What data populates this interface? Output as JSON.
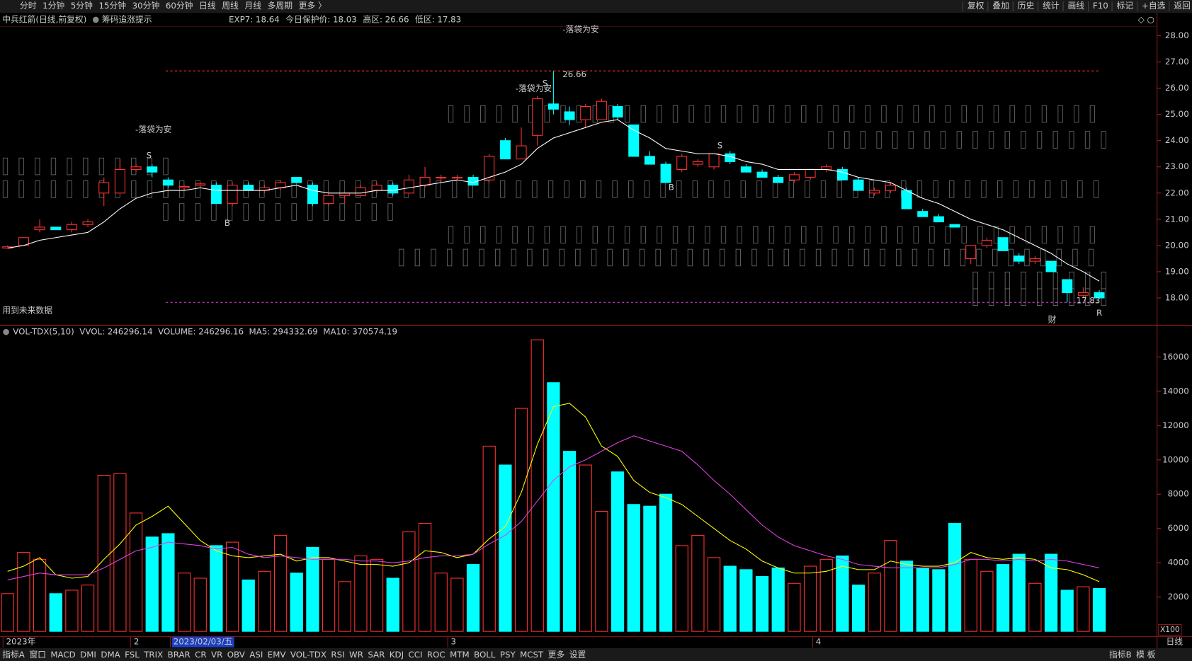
{
  "top_bar": {
    "left": [
      {
        "text": "分时"
      },
      {
        "text": "1分钟"
      },
      {
        "text": "5分钟"
      },
      {
        "text": "15分钟"
      },
      {
        "text": "30分钟"
      },
      {
        "text": "60分钟"
      },
      {
        "text": "日线",
        "active": true
      },
      {
        "text": "周线"
      },
      {
        "text": "月线"
      },
      {
        "text": "多周期"
      },
      {
        "text": "更多 〉"
      }
    ],
    "right": [
      "复权",
      "叠加",
      "历史",
      "统计",
      "画线",
      "F10",
      "标记",
      "+自选",
      "返回"
    ]
  },
  "header": {
    "title": "中兵红箭(日线,前复权)",
    "tip": "筹码追涨提示",
    "items": [
      {
        "text": "EXP7: 18.64",
        "color": "#e0e0e0"
      },
      {
        "text": "今日保护价: 18.03",
        "color": "#e040e0"
      },
      {
        "text": "高区: 26.66",
        "color": "#ff3030"
      },
      {
        "text": "低区: 17.83",
        "color": "#e040e0"
      }
    ]
  },
  "volume_header": {
    "items": [
      {
        "text": "VOL-TDX(5,10)",
        "color": "#e0e0e0"
      },
      {
        "text": "VVOL: 246296.14",
        "color": "#e0e0e0"
      },
      {
        "text": "VOLUME: 246296.16",
        "color": "#ffff00"
      },
      {
        "text": "MA5: 294332.69",
        "color": "#ffff00"
      },
      {
        "text": "MA10: 370574.19",
        "color": "#e040e0"
      }
    ]
  },
  "annotations": [
    {
      "text": "-落袋为安",
      "color": "#ffff00"
    },
    {
      "text": "-落袋为安",
      "color": "#ffff00"
    },
    {
      "text": "-落袋为安",
      "color": "#ffff00"
    },
    {
      "text": "S",
      "color": "#00e000"
    },
    {
      "text": "S",
      "color": "#00e000"
    },
    {
      "text": "S",
      "color": "#00e000"
    },
    {
      "text": "B",
      "color": "#ff3030"
    },
    {
      "text": "B",
      "color": "#ff3030"
    },
    {
      "text": "R",
      "color": "#ff3030"
    },
    {
      "text": "财",
      "color": "#9ab0ff"
    },
    {
      "text": "用到未来数据",
      "color": "#999999"
    }
  ],
  "x_axis": {
    "labels": [
      {
        "text": "2023年"
      },
      {
        "text": "2"
      },
      {
        "text": "2023/02/03/五",
        "selected": true
      },
      {
        "text": "3"
      },
      {
        "text": "4"
      }
    ]
  },
  "corner": {
    "unit": "X100",
    "period": "日线"
  },
  "bottom_tabs": {
    "left": [
      {
        "text": "指标A"
      },
      {
        "text": "窗口"
      },
      {
        "text": "MACD"
      },
      {
        "text": "DMI"
      },
      {
        "text": "DMA"
      },
      {
        "text": "FSL"
      },
      {
        "text": "TRIX"
      },
      {
        "text": "BRAR"
      },
      {
        "text": "CR"
      },
      {
        "text": "VR"
      },
      {
        "text": "OBV"
      },
      {
        "text": "ASI"
      },
      {
        "text": "EMV"
      },
      {
        "text": "VOL-TDX",
        "active": true
      },
      {
        "text": "RSI"
      },
      {
        "text": "WR"
      },
      {
        "text": "SAR"
      },
      {
        "text": "KDJ"
      },
      {
        "text": "CCI"
      },
      {
        "text": "ROC"
      },
      {
        "text": "MTM"
      },
      {
        "text": "BOLL"
      },
      {
        "text": "PSY"
      },
      {
        "text": "MCST"
      },
      {
        "text": "更多"
      },
      {
        "text": "设置"
      }
    ],
    "right": [
      "指标B",
      "模 板"
    ]
  },
  "chart_data": [
    {
      "type": "candlestick",
      "up_color": "#ff3232",
      "down_color": "#00ffff",
      "ylim": [
        16.96,
        28.35
      ],
      "yticks": [
        {
          "value": 18,
          "label": "18.00"
        },
        {
          "value": 19,
          "label": "19.00"
        },
        {
          "value": 20,
          "label": "20.00"
        },
        {
          "value": 21,
          "label": "21.00"
        },
        {
          "value": 22,
          "label": "22.00"
        },
        {
          "value": 23,
          "label": "23.00"
        },
        {
          "value": 24,
          "label": "24.00"
        },
        {
          "value": 25,
          "label": "25.00"
        },
        {
          "value": 26,
          "label": "26.00"
        },
        {
          "value": 27,
          "label": "27.00"
        },
        {
          "value": 28,
          "label": "28.00"
        }
      ],
      "high_line": 26.66,
      "low_line": 17.83,
      "open": [
        19.9,
        20.0,
        20.6,
        20.7,
        20.6,
        20.8,
        22.0,
        22.0,
        22.9,
        23.0,
        22.5,
        22.2,
        22.3,
        22.3,
        21.6,
        22.3,
        22.1,
        22.2,
        22.6,
        22.3,
        21.6,
        21.9,
        21.9,
        22.1,
        22.3,
        22.0,
        22.3,
        22.6,
        22.6,
        22.6,
        22.5,
        24.0,
        23.3,
        24.2,
        25.4,
        25.1,
        24.8,
        24.8,
        25.3,
        24.6,
        23.4,
        23.1,
        22.9,
        23.1,
        23.0,
        23.5,
        23.0,
        22.8,
        22.6,
        22.5,
        22.6,
        22.9,
        22.9,
        22.5,
        22.0,
        22.1,
        22.1,
        21.3,
        21.1,
        20.8,
        19.5,
        20.0,
        20.3,
        19.6,
        19.4,
        19.4,
        18.7,
        18.1,
        18.2
      ],
      "high": [
        20.0,
        20.3,
        21.0,
        20.7,
        20.9,
        21.0,
        22.6,
        23.3,
        23.1,
        23.1,
        22.6,
        22.3,
        22.4,
        22.4,
        22.4,
        22.4,
        22.3,
        22.5,
        22.6,
        22.4,
        21.9,
        22.0,
        22.3,
        22.4,
        22.4,
        22.7,
        23.0,
        22.7,
        22.7,
        22.7,
        23.5,
        24.1,
        24.5,
        25.7,
        26.66,
        25.3,
        25.4,
        25.6,
        25.4,
        24.6,
        23.6,
        23.2,
        23.5,
        23.3,
        23.5,
        23.6,
        23.1,
        22.9,
        22.7,
        22.8,
        22.9,
        23.1,
        23.0,
        22.6,
        22.2,
        22.4,
        22.2,
        21.4,
        21.2,
        20.8,
        20.0,
        20.3,
        20.3,
        19.7,
        19.6,
        19.4,
        18.7,
        18.4,
        18.3
      ],
      "low": [
        19.9,
        20.0,
        20.5,
        20.6,
        20.5,
        20.7,
        21.5,
        22.0,
        22.8,
        22.6,
        22.2,
        22.1,
        22.2,
        21.6,
        21.5,
        22.1,
        22.0,
        22.1,
        22.4,
        21.5,
        21.5,
        21.6,
        21.9,
        22.0,
        21.9,
        22.0,
        22.2,
        22.4,
        22.5,
        22.3,
        22.4,
        23.3,
        23.3,
        23.8,
        25.0,
        24.6,
        24.5,
        24.8,
        24.8,
        23.4,
        23.1,
        22.4,
        22.8,
        23.0,
        22.9,
        23.1,
        22.8,
        22.6,
        22.4,
        22.4,
        22.5,
        22.8,
        22.5,
        22.1,
        21.9,
        22.0,
        21.4,
        21.1,
        20.9,
        20.7,
        19.3,
        19.9,
        19.8,
        19.3,
        19.3,
        19.0,
        17.83,
        18.0,
        17.95
      ],
      "close": [
        19.95,
        20.3,
        20.7,
        20.6,
        20.8,
        20.9,
        22.4,
        22.9,
        23.0,
        22.8,
        22.3,
        22.25,
        22.35,
        21.6,
        22.3,
        22.1,
        22.2,
        22.4,
        22.4,
        21.6,
        21.9,
        22.0,
        22.2,
        22.3,
        22.0,
        22.5,
        22.6,
        22.6,
        22.6,
        22.3,
        23.4,
        23.3,
        23.8,
        25.6,
        25.2,
        24.8,
        25.3,
        25.5,
        24.9,
        23.4,
        23.1,
        22.4,
        23.4,
        23.2,
        23.5,
        23.2,
        22.8,
        22.6,
        22.4,
        22.7,
        22.9,
        23.0,
        22.5,
        22.1,
        22.1,
        22.3,
        21.4,
        21.1,
        20.9,
        20.7,
        20.0,
        20.2,
        19.8,
        19.4,
        19.5,
        19.0,
        18.2,
        18.2,
        18.0
      ],
      "series": [
        {
          "name": "EXP7",
          "color": "#ffffff",
          "values": [
            19.9,
            20.0,
            20.2,
            20.3,
            20.4,
            20.5,
            20.9,
            21.4,
            21.8,
            22.0,
            22.1,
            22.1,
            22.2,
            22.1,
            22.1,
            22.1,
            22.1,
            22.2,
            22.3,
            22.1,
            22.0,
            22.0,
            22.0,
            22.1,
            22.1,
            22.2,
            22.3,
            22.4,
            22.5,
            22.4,
            22.6,
            22.8,
            23.1,
            23.7,
            24.1,
            24.3,
            24.5,
            24.7,
            24.8,
            24.4,
            24.1,
            23.7,
            23.6,
            23.5,
            23.5,
            23.4,
            23.2,
            23.1,
            22.9,
            22.9,
            22.9,
            22.9,
            22.8,
            22.6,
            22.5,
            22.4,
            22.1,
            21.8,
            21.6,
            21.3,
            21.0,
            20.8,
            20.6,
            20.3,
            20.0,
            19.7,
            19.3,
            19.0,
            18.64
          ]
        }
      ]
    },
    {
      "type": "bar",
      "ylim": [
        0,
        17010
      ],
      "yticks": [
        2000,
        4000,
        6000,
        8000,
        10000,
        12000,
        14000,
        16000
      ],
      "values": [
        2200,
        4600,
        4200,
        2200,
        2400,
        2700,
        9100,
        9200,
        6900,
        5500,
        5700,
        3400,
        3100,
        5000,
        5200,
        3000,
        3500,
        5600,
        3400,
        4900,
        4200,
        2900,
        4400,
        4200,
        3100,
        5800,
        6300,
        3400,
        3100,
        3900,
        10800,
        9700,
        13000,
        17000,
        14500,
        10500,
        9700,
        7000,
        9300,
        7400,
        7300,
        8000,
        5000,
        5600,
        4300,
        3800,
        3600,
        3200,
        3700,
        2800,
        3800,
        4200,
        4400,
        2700,
        3400,
        5300,
        4100,
        3700,
        3600,
        6300,
        4200,
        3500,
        3900,
        4500,
        2800,
        4500,
        2400,
        2600,
        2500
      ],
      "series": [
        {
          "name": "MA5",
          "color": "#ffff00",
          "values": [
            3500,
            3800,
            4300,
            3300,
            3100,
            3200,
            4200,
            5100,
            6200,
            6700,
            7300,
            6300,
            5300,
            4700,
            4400,
            4300,
            4400,
            4500,
            4100,
            4300,
            4300,
            4100,
            3900,
            3900,
            3800,
            4000,
            4700,
            4600,
            4300,
            4500,
            5400,
            6100,
            8100,
            10900,
            13100,
            13300,
            12500,
            10800,
            10200,
            8800,
            8100,
            7800,
            7400,
            6700,
            6000,
            5300,
            4800,
            4100,
            3700,
            3400,
            3400,
            3500,
            3800,
            3600,
            3600,
            4100,
            3900,
            3800,
            3800,
            4000,
            4600,
            4300,
            4200,
            4300,
            4200,
            3700,
            3600,
            3300,
            2900
          ]
        },
        {
          "name": "MA10",
          "color": "#e040e0",
          "values": [
            3000,
            3200,
            3400,
            3300,
            3300,
            3300,
            3700,
            4200,
            4700,
            4900,
            5200,
            5100,
            5000,
            4800,
            4900,
            4500,
            4300,
            4400,
            4300,
            4200,
            4200,
            4200,
            4100,
            4100,
            4000,
            4100,
            4300,
            4400,
            4400,
            4500,
            5100,
            5600,
            6400,
            7600,
            8800,
            9600,
            10000,
            10500,
            11000,
            11400,
            11100,
            10800,
            10500,
            9700,
            8800,
            8000,
            7100,
            6200,
            5500,
            5000,
            4700,
            4400,
            4200,
            3900,
            3800,
            3700,
            3700,
            3700,
            3700,
            3900,
            4200,
            4200,
            4100,
            4200,
            4100,
            4200,
            4100,
            3900,
            3700
          ]
        }
      ]
    }
  ]
}
